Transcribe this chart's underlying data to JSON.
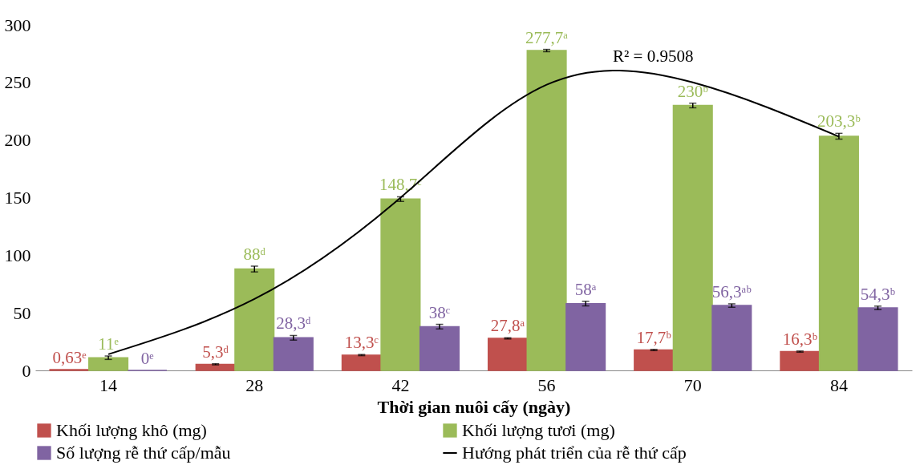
{
  "chart_data": {
    "type": "bar",
    "xlabel": "Thời gian nuôi cấy (ngày)",
    "categories": [
      "14",
      "28",
      "42",
      "56",
      "70",
      "84"
    ],
    "ylim": [
      0,
      300
    ],
    "yticks": [
      0,
      50,
      100,
      150,
      200,
      250,
      300
    ],
    "grid": false,
    "legend": "bottom",
    "annotations": [
      "R² = 0.9508"
    ],
    "series": [
      {
        "name": "Khối lượng khô (mg)",
        "color": "#c0504d",
        "values": [
          0.63,
          5.3,
          13.3,
          27.8,
          17.7,
          16.3
        ],
        "errors": [
          null,
          0.5,
          0.5,
          0.5,
          0.5,
          0.5
        ],
        "value_labels": [
          "0,63ᵉ",
          "5,3ᵈ",
          "13,3ᶜ",
          "27,8ᵃ",
          "17,7ᵇ",
          "16,3ᵇ"
        ]
      },
      {
        "name": "Khối lượng tươi (mg)",
        "color": "#9bbb59",
        "values": [
          11,
          88,
          148.7,
          277.7,
          230,
          203.3
        ],
        "errors": [
          1.5,
          2.5,
          2,
          1,
          2,
          2.5
        ],
        "value_labels": [
          "11ᵉ",
          "88ᵈ",
          "148,7ᶜ",
          "277,7ᵃ",
          "230ᵇ",
          "203,3ᵇ"
        ]
      },
      {
        "name": "Số lượng rễ thứ cấp/mẫu",
        "color": "#8064a2",
        "values": [
          0,
          28.3,
          38,
          58,
          56.3,
          54.3
        ],
        "errors": [
          null,
          2,
          2,
          2,
          1.5,
          1.5
        ],
        "value_labels": [
          "0ᵉ",
          "28,3ᵈ",
          "38ᶜ",
          "58ᵃ",
          "56,3ᵃᵇ",
          "54,3ᵇ"
        ]
      },
      {
        "name": "Hướng phát triển của rễ thứ cấp",
        "type": "line",
        "color": "#000000",
        "values": [
          14,
          62,
          150,
          248,
          250,
          203
        ]
      }
    ]
  }
}
